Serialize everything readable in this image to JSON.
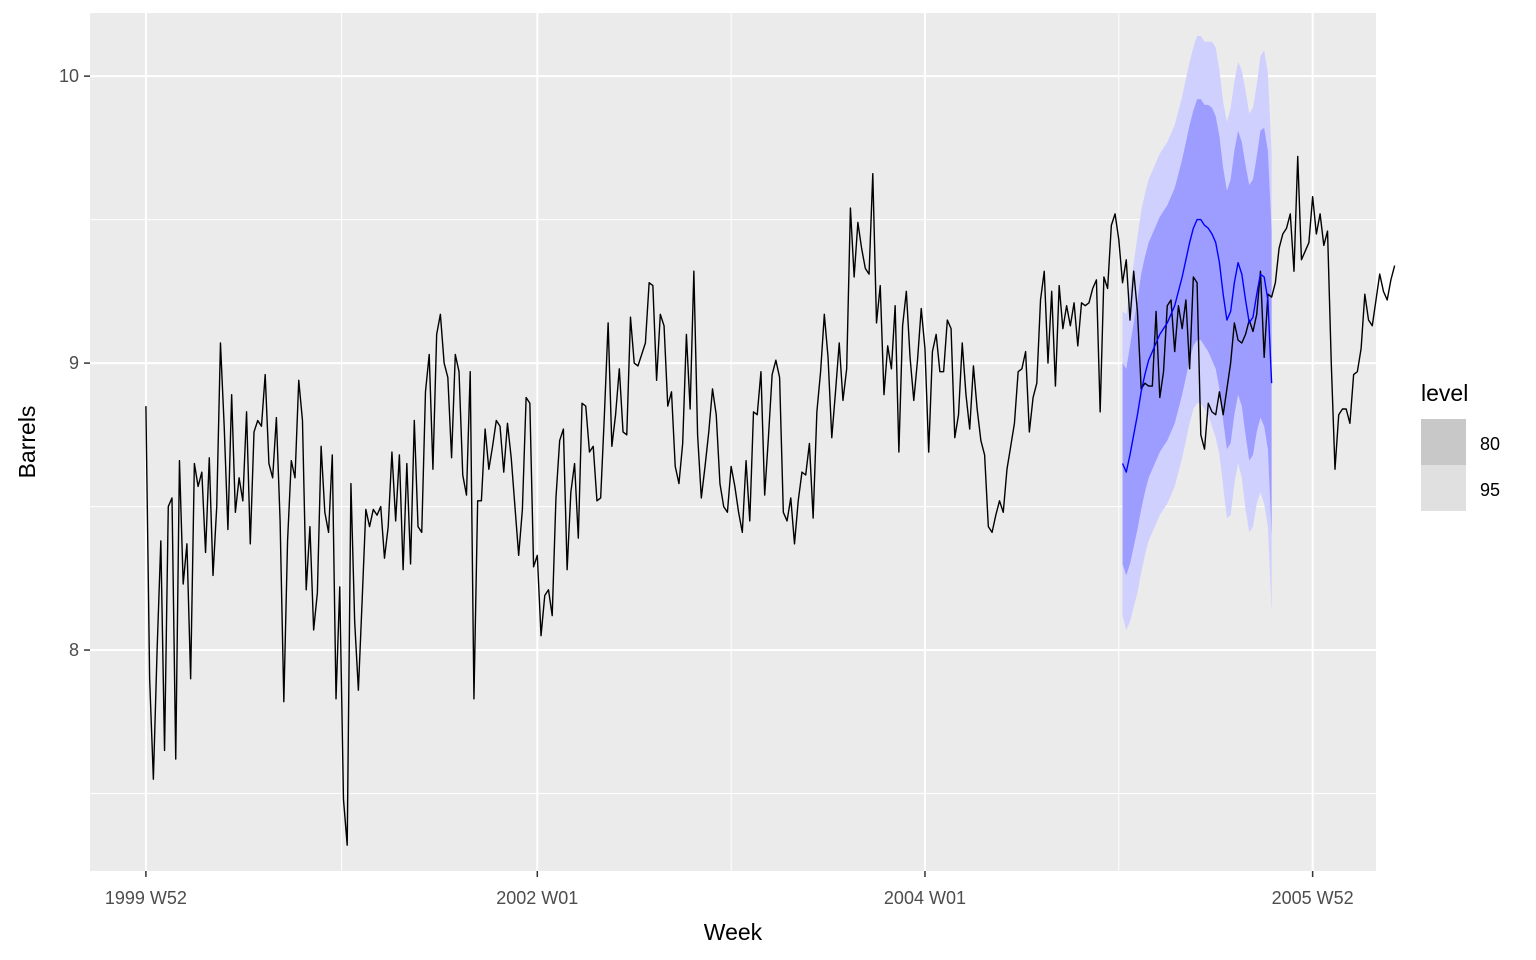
{
  "chart_data": {
    "type": "line",
    "title": "",
    "xlabel": "Week",
    "ylabel": "Barrels",
    "x_ticks": [
      "1999 W52",
      "2002 W01",
      "2004 W01",
      "2005 W52"
    ],
    "x_tick_index": [
      0,
      105,
      209,
      313
    ],
    "x_range_index": [
      -15,
      330
    ],
    "y_ticks": [
      8,
      9,
      10
    ],
    "y_tick_labels": [
      "8",
      "9",
      "10"
    ],
    "ylim": [
      7.23,
      10.22
    ],
    "grid": true,
    "legend": {
      "title": "level",
      "position": "right",
      "entries": [
        {
          "label": "80",
          "color": "#c8c8c8"
        },
        {
          "label": "95",
          "color": "#e0e0e0"
        }
      ]
    },
    "colors": {
      "panel": "#ebebeb",
      "grid": "#ffffff",
      "history": "#000000",
      "forecast_mean": "#0000ff",
      "band80": "#9d9dff",
      "band95": "#d0d0ff"
    },
    "forecast_start_index": 262,
    "series": [
      {
        "name": "history",
        "values": [
          8.85,
          7.9,
          7.55,
          8.0,
          8.38,
          7.65,
          8.5,
          8.53,
          7.62,
          8.66,
          8.23,
          8.37,
          7.9,
          8.65,
          8.57,
          8.62,
          8.34,
          8.67,
          8.26,
          8.5,
          9.07,
          8.78,
          8.42,
          8.89,
          8.48,
          8.6,
          8.52,
          8.83,
          8.37,
          8.76,
          8.8,
          8.78,
          8.96,
          8.65,
          8.6,
          8.81,
          8.45,
          7.82,
          8.38,
          8.66,
          8.6,
          8.94,
          8.8,
          8.21,
          8.43,
          8.07,
          8.2,
          8.71,
          8.48,
          8.41,
          8.68,
          7.83,
          8.22,
          7.48,
          7.32,
          8.58,
          8.1,
          7.86,
          8.17,
          8.49,
          8.43,
          8.49,
          8.47,
          8.5,
          8.32,
          8.43,
          8.69,
          8.45,
          8.68,
          8.28,
          8.65,
          8.3,
          8.8,
          8.43,
          8.41,
          8.9,
          9.03,
          8.63,
          9.1,
          9.17,
          9.0,
          8.95,
          8.67,
          9.03,
          8.97,
          8.61,
          8.54,
          8.97,
          7.83,
          8.52,
          8.52,
          8.77,
          8.63,
          8.71,
          8.8,
          8.78,
          8.62,
          8.79,
          8.67,
          8.5,
          8.33,
          8.49,
          8.88,
          8.86,
          8.29,
          8.33,
          8.05,
          8.19,
          8.21,
          8.12,
          8.53,
          8.73,
          8.77,
          8.28,
          8.55,
          8.65,
          8.39,
          8.86,
          8.85,
          8.69,
          8.71,
          8.52,
          8.53,
          8.82,
          9.14,
          8.71,
          8.82,
          8.98,
          8.76,
          8.75,
          9.16,
          9.0,
          8.99,
          9.03,
          9.07,
          9.28,
          9.27,
          8.94,
          9.17,
          9.13,
          8.85,
          8.9,
          8.64,
          8.58,
          8.72,
          9.1,
          8.84,
          9.32,
          8.75,
          8.53,
          8.64,
          8.76,
          8.91,
          8.82,
          8.58,
          8.5,
          8.48,
          8.64,
          8.57,
          8.48,
          8.41,
          8.66,
          8.45,
          8.83,
          8.82,
          8.97,
          8.54,
          8.74,
          8.96,
          9.01,
          8.95,
          8.48,
          8.45,
          8.53,
          8.37,
          8.52,
          8.62,
          8.61,
          8.72,
          8.46,
          8.83,
          8.97,
          9.17,
          9.02,
          8.74,
          8.9,
          9.07,
          8.87,
          8.98,
          9.54,
          9.3,
          9.49,
          9.4,
          9.33,
          9.31,
          9.66,
          9.14,
          9.27,
          8.89,
          9.06,
          8.98,
          9.2,
          8.69,
          9.13,
          9.25,
          9.02,
          8.87,
          9.01,
          9.19,
          9.05,
          8.69,
          9.04,
          9.1,
          8.97,
          8.97,
          9.15,
          9.12,
          8.74,
          8.82,
          9.07,
          8.89,
          8.77,
          8.99,
          8.84,
          8.73,
          8.68,
          8.43,
          8.41,
          8.47,
          8.52,
          8.48,
          8.63,
          8.71,
          8.79,
          8.97,
          8.98,
          9.04,
          8.76,
          8.88,
          8.93,
          9.22,
          9.32,
          9.0,
          9.25,
          8.92,
          9.27,
          9.12,
          9.2,
          9.13,
          9.21,
          9.06,
          9.21,
          9.2,
          9.21,
          9.26,
          9.29,
          8.83,
          9.3,
          9.26,
          9.48,
          9.52,
          9.43,
          9.28,
          9.36,
          9.15,
          9.32,
          9.18,
          8.91,
          8.93,
          8.92,
          8.92,
          9.18,
          8.88,
          8.97,
          9.2,
          9.22,
          9.04,
          9.2,
          9.12,
          9.22,
          8.98,
          9.3,
          9.28,
          8.75,
          8.7,
          8.86,
          8.83,
          8.82,
          8.9,
          8.82,
          8.91,
          9.0,
          9.14,
          9.08,
          9.07,
          9.1,
          9.15,
          9.11,
          9.17,
          9.32,
          9.02,
          9.24,
          9.23,
          9.28,
          9.4,
          9.45,
          9.47,
          9.52,
          9.32,
          9.72,
          9.36,
          9.39,
          9.42,
          9.58,
          9.45,
          9.52,
          9.41,
          9.46,
          9.0,
          8.63,
          8.82,
          8.84,
          8.84,
          8.79,
          8.96,
          8.97,
          9.05,
          9.24,
          9.15,
          9.13,
          9.22,
          9.31,
          9.25,
          9.22,
          9.29,
          9.34
        ]
      },
      {
        "name": "forecast",
        "values": [
          8.65,
          8.62,
          8.68,
          8.75,
          8.82,
          8.9,
          8.96,
          9.01,
          9.04,
          9.07,
          9.1,
          9.12,
          9.14,
          9.17,
          9.2,
          9.25,
          9.3,
          9.36,
          9.42,
          9.47,
          9.5,
          9.5,
          9.48,
          9.47,
          9.45,
          9.42,
          9.35,
          9.24,
          9.15,
          9.18,
          9.28,
          9.35,
          9.31,
          9.22,
          9.14,
          9.16,
          9.24,
          9.31,
          9.3,
          9.22,
          8.93
        ]
      }
    ],
    "band80": {
      "lower": [
        8.3,
        8.26,
        8.3,
        8.36,
        8.42,
        8.49,
        8.55,
        8.6,
        8.63,
        8.66,
        8.69,
        8.71,
        8.73,
        8.76,
        8.79,
        8.84,
        8.89,
        8.95,
        9.01,
        9.06,
        9.08,
        9.08,
        9.06,
        9.04,
        9.01,
        8.98,
        8.91,
        8.8,
        8.7,
        8.72,
        8.82,
        8.89,
        8.85,
        8.75,
        8.66,
        8.68,
        8.76,
        8.81,
        8.78,
        8.7,
        8.4
      ],
      "upper": [
        9.0,
        8.98,
        9.06,
        9.14,
        9.22,
        9.31,
        9.37,
        9.42,
        9.45,
        9.48,
        9.51,
        9.53,
        9.55,
        9.58,
        9.61,
        9.66,
        9.71,
        9.77,
        9.83,
        9.88,
        9.92,
        9.92,
        9.9,
        9.9,
        9.89,
        9.86,
        9.79,
        9.68,
        9.6,
        9.64,
        9.74,
        9.81,
        9.77,
        9.69,
        9.62,
        9.64,
        9.72,
        9.81,
        9.82,
        9.74,
        9.46
      ]
    },
    "band95": {
      "lower": [
        8.12,
        8.07,
        8.1,
        8.15,
        8.2,
        8.27,
        8.33,
        8.38,
        8.41,
        8.44,
        8.47,
        8.49,
        8.51,
        8.54,
        8.57,
        8.62,
        8.67,
        8.73,
        8.79,
        8.84,
        8.86,
        8.86,
        8.84,
        8.82,
        8.78,
        8.74,
        8.68,
        8.57,
        8.46,
        8.47,
        8.58,
        8.65,
        8.6,
        8.49,
        8.41,
        8.43,
        8.51,
        8.55,
        8.51,
        8.43,
        8.13
      ],
      "upper": [
        9.18,
        9.17,
        9.26,
        9.35,
        9.44,
        9.53,
        9.59,
        9.64,
        9.67,
        9.7,
        9.73,
        9.75,
        9.77,
        9.8,
        9.83,
        9.88,
        9.93,
        9.99,
        10.05,
        10.1,
        10.14,
        10.14,
        10.12,
        10.12,
        10.12,
        10.1,
        10.02,
        9.91,
        9.84,
        9.89,
        9.98,
        10.05,
        10.02,
        9.95,
        9.87,
        9.89,
        9.97,
        10.07,
        10.09,
        10.01,
        9.73
      ]
    }
  }
}
